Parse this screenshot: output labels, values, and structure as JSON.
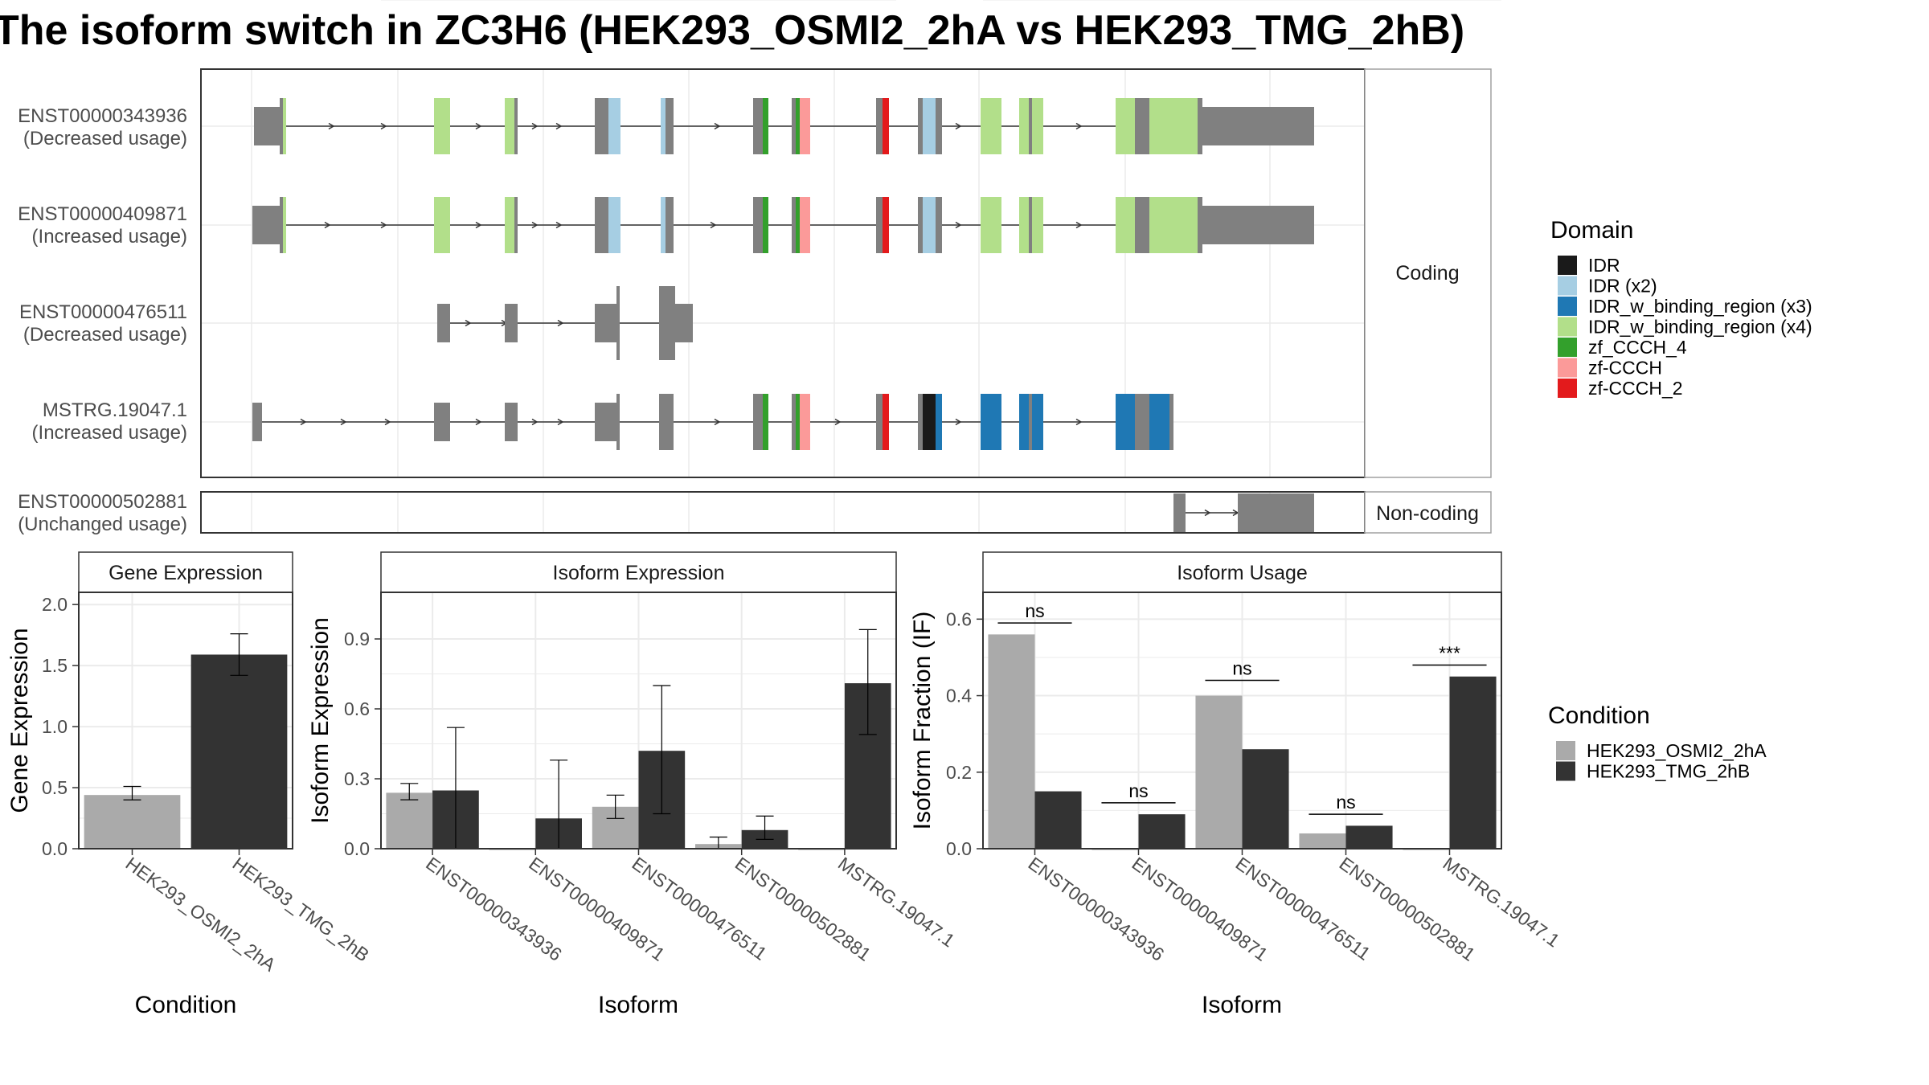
{
  "title": "The isoform switch in ZC3H6 (HEK293_OSMI2_2hA vs HEK293_TMG_2hB)",
  "colors": {
    "gene_body": "#808080",
    "cond_a": "#aaaaaa",
    "cond_b": "#333333",
    "grid": "#ebebeb",
    "panel_border": "#333333",
    "strip_border": "#a0a0a0"
  },
  "structure": {
    "groups": [
      "Coding",
      "Non-coding"
    ],
    "transcripts": [
      {
        "id": "ENST00000343936",
        "usage": "(Decreased usage)",
        "group": "Coding",
        "coding": true
      },
      {
        "id": "ENST00000409871",
        "usage": "(Increased usage)",
        "group": "Coding",
        "coding": true
      },
      {
        "id": "ENST00000476511",
        "usage": "(Decreased usage)",
        "group": "Coding",
        "coding": false
      },
      {
        "id": "MSTRG.19047.1",
        "usage": "(Increased usage)",
        "group": "Coding",
        "coding": true
      },
      {
        "id": "ENST00000502881",
        "usage": "(Unchanged usage)",
        "group": "Non-coding",
        "coding": false
      }
    ],
    "domain_legend_title": "Domain",
    "domains": [
      {
        "name": "IDR",
        "color": "#1a1a1a"
      },
      {
        "name": "IDR (x2)",
        "color": "#a6cee3"
      },
      {
        "name": "IDR_w_binding_region (x3)",
        "color": "#1f78b4"
      },
      {
        "name": "IDR_w_binding_region (x4)",
        "color": "#b2df8a"
      },
      {
        "name": "zf_CCCH_4",
        "color": "#33a02c"
      },
      {
        "name": "zf-CCCH",
        "color": "#fb9a99"
      },
      {
        "name": "zf-CCCH_2",
        "color": "#e31a1c"
      }
    ]
  },
  "condition_legend": {
    "title": "Condition",
    "items": [
      {
        "name": "HEK293_OSMI2_2hA",
        "color": "#aaaaaa"
      },
      {
        "name": "HEK293_TMG_2hB",
        "color": "#333333"
      }
    ]
  },
  "chart_data": [
    {
      "type": "bar",
      "title": "Gene Expression",
      "xlabel": "Condition",
      "ylabel": "Gene Expression",
      "ylim": [
        0,
        2.1
      ],
      "yticks": [
        "0.0",
        "0.5",
        "1.0",
        "1.5",
        "2.0"
      ],
      "categories": [
        "HEK293_OSMI2_2hA",
        "HEK293_TMG_2hB"
      ],
      "series": [
        {
          "name": "HEK293_OSMI2_2hA",
          "values": [
            0.44,
            null
          ],
          "err_low": [
            0.4,
            null
          ],
          "err_high": [
            0.51,
            null
          ]
        },
        {
          "name": "HEK293_TMG_2hB",
          "values": [
            null,
            1.59
          ],
          "err_low": [
            null,
            1.42
          ],
          "err_high": [
            null,
            1.76
          ]
        }
      ]
    },
    {
      "type": "bar",
      "title": "Isoform Expression",
      "xlabel": "Isoform",
      "ylabel": "Isoform Expression",
      "ylim": [
        0,
        1.1
      ],
      "yticks": [
        "0.0",
        "0.3",
        "0.6",
        "0.9"
      ],
      "categories": [
        "ENST00000343936",
        "ENST00000409871",
        "ENST00000476511",
        "ENST00000502881",
        "MSTRG.19047.1"
      ],
      "series": [
        {
          "name": "HEK293_OSMI2_2hA",
          "values": [
            0.24,
            0.0,
            0.18,
            0.02,
            0.0
          ],
          "err_low": [
            0.21,
            0.0,
            0.13,
            0.0,
            0.0
          ],
          "err_high": [
            0.28,
            0.0,
            0.23,
            0.05,
            0.0
          ]
        },
        {
          "name": "HEK293_TMG_2hB",
          "values": [
            0.25,
            0.13,
            0.42,
            0.08,
            0.71
          ],
          "err_low": [
            0.0,
            0.0,
            0.15,
            0.04,
            0.49
          ],
          "err_high": [
            0.52,
            0.38,
            0.7,
            0.14,
            0.94
          ]
        }
      ]
    },
    {
      "type": "bar",
      "title": "Isoform Usage",
      "xlabel": "Isoform",
      "ylabel": "Isoform Fraction (IF)",
      "ylim": [
        0,
        0.67
      ],
      "yticks": [
        "0.0",
        "0.2",
        "0.4",
        "0.6"
      ],
      "categories": [
        "ENST00000343936",
        "ENST00000409871",
        "ENST00000476511",
        "ENST00000502881",
        "MSTRG.19047.1"
      ],
      "series": [
        {
          "name": "HEK293_OSMI2_2hA",
          "values": [
            0.56,
            0.0,
            0.4,
            0.04,
            0.0
          ]
        },
        {
          "name": "HEK293_TMG_2hB",
          "values": [
            0.15,
            0.09,
            0.26,
            0.06,
            0.45
          ]
        }
      ],
      "significance": [
        "ns",
        "ns",
        "ns",
        "ns",
        "***"
      ],
      "significance_level": [
        0.59,
        0.12,
        0.44,
        0.09,
        0.48
      ]
    }
  ]
}
